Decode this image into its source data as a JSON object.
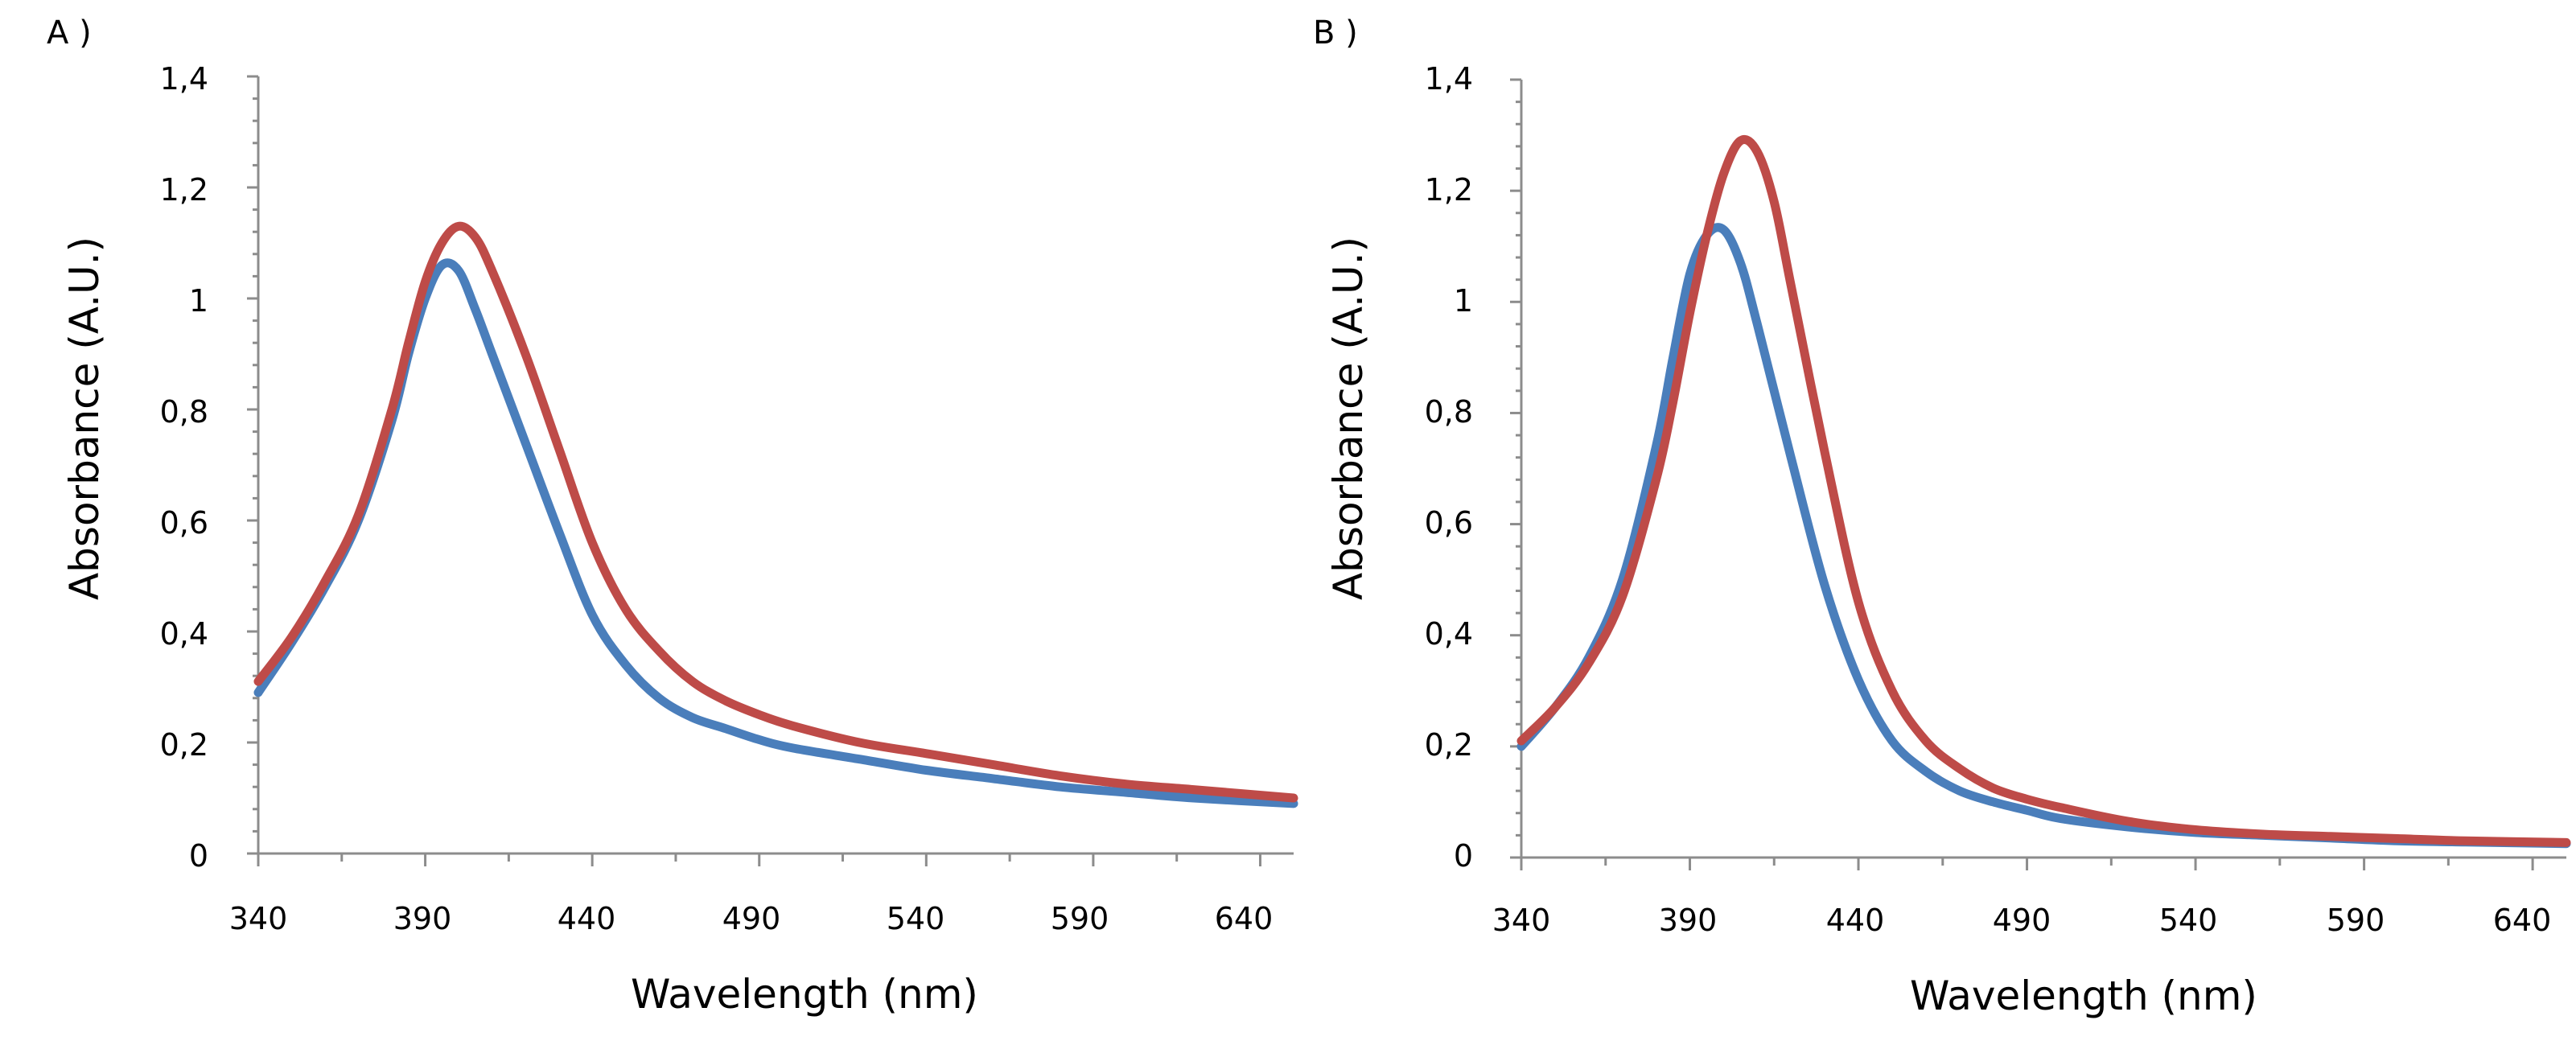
{
  "chart_data": [
    {
      "panel_label": "A )",
      "type": "line",
      "xlabel": "Wavelength (nm)",
      "ylabel": "Absorbance (A.U.)",
      "xlim": [
        340,
        650
      ],
      "ylim": [
        0,
        1.4
      ],
      "xticks": [
        340,
        390,
        440,
        490,
        540,
        590,
        640
      ],
      "xtick_labels": [
        "340",
        "390",
        "440",
        "490",
        "540",
        "590",
        "640"
      ],
      "yticks": [
        0,
        0.2,
        0.4,
        0.6,
        0.8,
        1,
        1.2,
        1.4
      ],
      "ytick_labels": [
        "0",
        "0,2",
        "0,4",
        "0,6",
        "0,8",
        "1",
        "1,2",
        "1,4"
      ],
      "grid": false,
      "series": [
        {
          "name": "Blue series",
          "color": "#4a7ebb",
          "x": [
            340,
            350,
            360,
            370,
            380,
            385,
            390,
            395,
            400,
            405,
            410,
            420,
            430,
            440,
            450,
            460,
            470,
            480,
            490,
            500,
            520,
            540,
            560,
            580,
            600,
            620,
            650
          ],
          "y": [
            0.29,
            0.38,
            0.48,
            0.6,
            0.78,
            0.9,
            1.0,
            1.06,
            1.05,
            0.98,
            0.9,
            0.74,
            0.58,
            0.43,
            0.34,
            0.28,
            0.245,
            0.225,
            0.205,
            0.19,
            0.17,
            0.15,
            0.135,
            0.12,
            0.11,
            0.1,
            0.09
          ]
        },
        {
          "name": "Red series",
          "color": "#be4b48",
          "x": [
            340,
            350,
            360,
            370,
            380,
            385,
            390,
            395,
            400,
            405,
            410,
            420,
            430,
            440,
            450,
            460,
            470,
            480,
            490,
            500,
            520,
            540,
            560,
            580,
            600,
            620,
            650
          ],
          "y": [
            0.31,
            0.39,
            0.49,
            0.61,
            0.8,
            0.92,
            1.03,
            1.1,
            1.13,
            1.11,
            1.05,
            0.9,
            0.73,
            0.56,
            0.44,
            0.365,
            0.31,
            0.275,
            0.25,
            0.23,
            0.2,
            0.18,
            0.16,
            0.14,
            0.125,
            0.115,
            0.1
          ]
        }
      ]
    },
    {
      "panel_label": "B )",
      "type": "line",
      "xlabel": "Wavelength (nm)",
      "ylabel": "Absorbance (A.U.)",
      "xlim": [
        340,
        650
      ],
      "ylim": [
        0,
        1.4
      ],
      "xticks": [
        340,
        390,
        440,
        490,
        540,
        590,
        640
      ],
      "xtick_labels": [
        "340",
        "390",
        "440",
        "490",
        "540",
        "590",
        "640"
      ],
      "yticks": [
        0,
        0.2,
        0.4,
        0.6,
        0.8,
        1,
        1.2,
        1.4
      ],
      "ytick_labels": [
        "0",
        "0,2",
        "0,4",
        "0,6",
        "0,8",
        "1",
        "1,2",
        "1,4"
      ],
      "grid": false,
      "series": [
        {
          "name": "Blue series",
          "color": "#4a7ebb",
          "x": [
            340,
            350,
            360,
            370,
            380,
            385,
            390,
            395,
            400,
            405,
            410,
            420,
            430,
            440,
            450,
            460,
            470,
            480,
            490,
            500,
            520,
            540,
            560,
            580,
            600,
            620,
            650
          ],
          "y": [
            0.2,
            0.27,
            0.36,
            0.5,
            0.74,
            0.9,
            1.05,
            1.12,
            1.13,
            1.07,
            0.96,
            0.72,
            0.49,
            0.32,
            0.21,
            0.155,
            0.12,
            0.1,
            0.085,
            0.07,
            0.055,
            0.045,
            0.04,
            0.035,
            0.03,
            0.028,
            0.025
          ]
        },
        {
          "name": "Red series",
          "color": "#be4b48",
          "x": [
            340,
            350,
            360,
            370,
            380,
            385,
            390,
            395,
            400,
            405,
            410,
            415,
            420,
            430,
            440,
            450,
            460,
            470,
            480,
            490,
            500,
            520,
            540,
            560,
            580,
            600,
            620,
            650
          ],
          "y": [
            0.21,
            0.27,
            0.35,
            0.47,
            0.68,
            0.82,
            0.98,
            1.12,
            1.23,
            1.29,
            1.27,
            1.18,
            1.03,
            0.73,
            0.46,
            0.3,
            0.21,
            0.16,
            0.125,
            0.105,
            0.09,
            0.065,
            0.05,
            0.042,
            0.038,
            0.034,
            0.03,
            0.027
          ]
        }
      ]
    }
  ]
}
